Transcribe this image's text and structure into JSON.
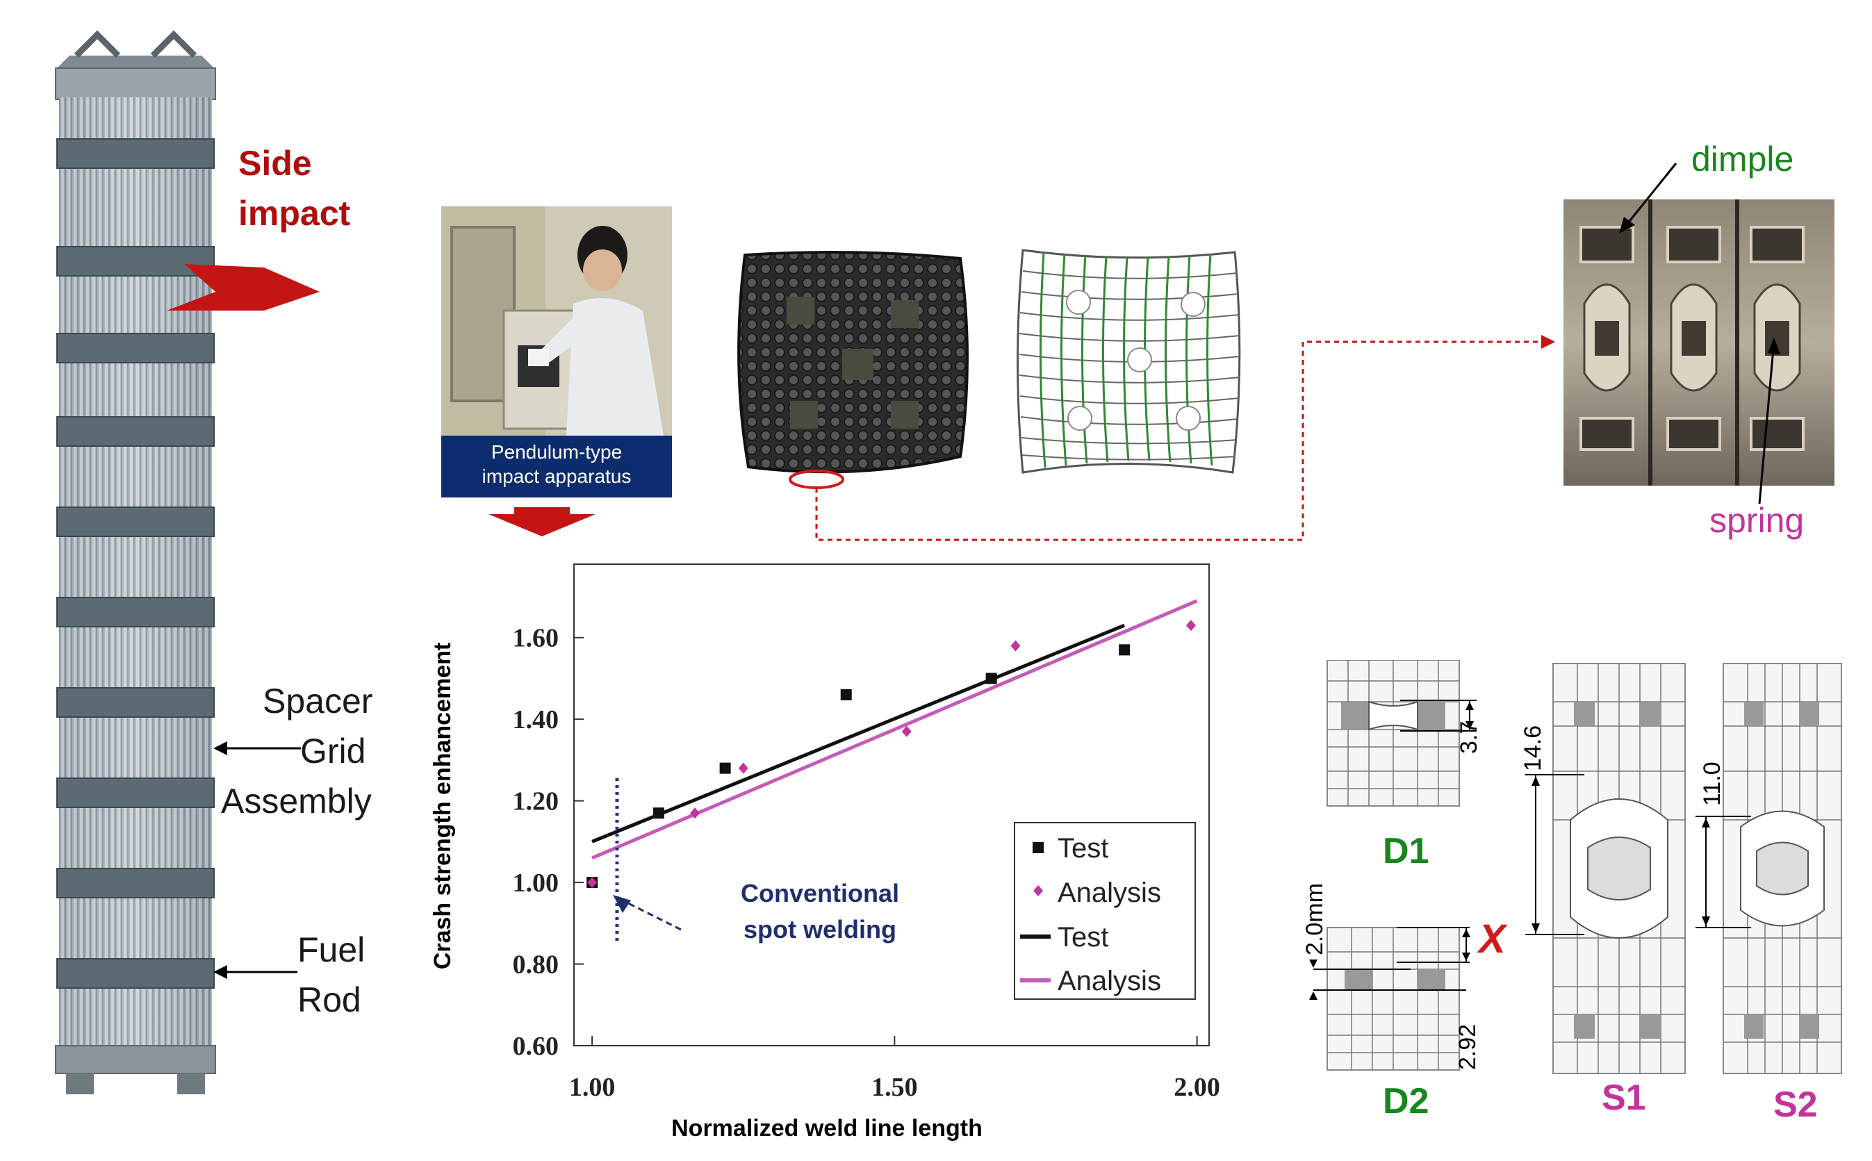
{
  "labels": {
    "side_impact_line1": "Side",
    "side_impact_line2": "impact",
    "spacer_line1": "Spacer",
    "spacer_line2": "Grid",
    "spacer_line3": "Assembly",
    "fuel_line1": "Fuel",
    "fuel_line2": "Rod",
    "apparatus_line1": "Pendulum-type",
    "apparatus_line2": "impact apparatus",
    "dimple": "dimple",
    "spring": "spring",
    "conventional_line1": "Conventional",
    "conventional_line2": "spot welding",
    "x_mark": "X"
  },
  "fe_models": {
    "d1": {
      "label": "D1",
      "dim": "3.7"
    },
    "d2": {
      "label": "D2",
      "dim_top": "2.0mm",
      "dim_bottom": "2.92"
    },
    "s1": {
      "label": "S1",
      "dim": "14.6"
    },
    "s2": {
      "label": "S2",
      "dim": "11.0"
    }
  },
  "colors": {
    "dark_red": "#b00d0d",
    "green": "#17861b",
    "magenta": "#c3349a",
    "navy": "#0c2c6e",
    "analysis_line": "#c35cb8"
  },
  "chart_data": {
    "type": "scatter",
    "xlabel": "Normalized weld line length",
    "ylabel": "Crash strength enhancement",
    "xlim": [
      0.97,
      2.02
    ],
    "ylim": [
      0.6,
      1.78
    ],
    "xticks": [
      1.0,
      1.5,
      2.0
    ],
    "xtick_labels": [
      "1.00",
      "1.50",
      "2.00"
    ],
    "yticks": [
      0.6,
      0.8,
      1.0,
      1.2,
      1.4,
      1.6
    ],
    "ytick_labels": [
      "0.60",
      "0.80",
      "1.00",
      "1.20",
      "1.40",
      "1.60"
    ],
    "legend_position": "bottom-right",
    "legend": [
      "Test",
      "Analysis",
      "Test",
      "Analysis"
    ],
    "series": [
      {
        "name": "Test",
        "kind": "scatter",
        "marker": "square",
        "color": "#111111",
        "points": [
          [
            1.0,
            1.0
          ],
          [
            1.11,
            1.17
          ],
          [
            1.22,
            1.28
          ],
          [
            1.42,
            1.46
          ],
          [
            1.66,
            1.5
          ],
          [
            1.88,
            1.57
          ]
        ]
      },
      {
        "name": "Analysis",
        "kind": "scatter",
        "marker": "diamond",
        "color": "#c3349a",
        "points": [
          [
            1.0,
            1.0
          ],
          [
            1.17,
            1.17
          ],
          [
            1.25,
            1.28
          ],
          [
            1.52,
            1.37
          ],
          [
            1.7,
            1.58
          ],
          [
            1.99,
            1.63
          ]
        ]
      },
      {
        "name": "Test",
        "kind": "line",
        "color": "#111111",
        "points": [
          [
            1.0,
            1.1
          ],
          [
            1.88,
            1.63
          ]
        ]
      },
      {
        "name": "Analysis",
        "kind": "line",
        "color": "#c35cb8",
        "points": [
          [
            1.0,
            1.06
          ],
          [
            2.0,
            1.69
          ]
        ]
      }
    ]
  }
}
